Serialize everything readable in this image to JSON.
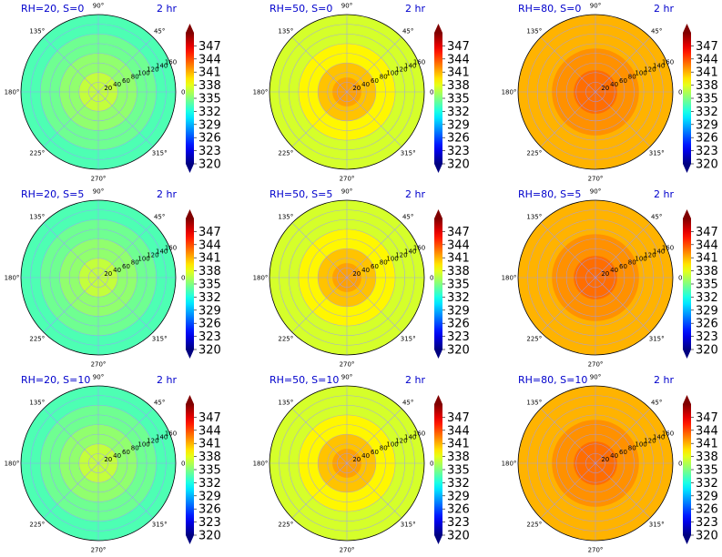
{
  "figure": {
    "colorbar_ticks": [
      "347",
      "344",
      "341",
      "338",
      "335",
      "332",
      "329",
      "326",
      "323",
      "320"
    ],
    "angle_labels": [
      "90°",
      "45°",
      "0°",
      "315°",
      "270°",
      "225°",
      "180°",
      "135°"
    ],
    "radial_labels": [
      "20",
      "40",
      "60",
      "80",
      "100",
      "120",
      "140",
      "160"
    ],
    "time_label": "2 hr",
    "colors": {
      "title": "#0000cc",
      "grid": "#9a9aff"
    }
  },
  "chart_data": [
    {
      "type": "heatmap",
      "projection": "polar",
      "title": "RH=20, S=0",
      "time": "2 hr",
      "rmax": 160,
      "clim": [
        320,
        350
      ],
      "rings": [
        {
          "r": 40,
          "value": 337
        },
        {
          "r": 80,
          "value": 335.5
        },
        {
          "r": 120,
          "value": 334.5
        },
        {
          "r": 160,
          "value": 333.5
        }
      ]
    },
    {
      "type": "heatmap",
      "projection": "polar",
      "title": "RH=50, S=0",
      "time": "2 hr",
      "rmax": 160,
      "clim": [
        320,
        350
      ],
      "rings": [
        {
          "r": 30,
          "value": 341.5
        },
        {
          "r": 60,
          "value": 340.5
        },
        {
          "r": 100,
          "value": 339
        },
        {
          "r": 160,
          "value": 337.5
        }
      ]
    },
    {
      "type": "heatmap",
      "projection": "polar",
      "title": "RH=80, S=0",
      "time": "2 hr",
      "rmax": 160,
      "clim": [
        320,
        350
      ],
      "rings": [
        {
          "r": 45,
          "value": 343
        },
        {
          "r": 90,
          "value": 342
        },
        {
          "r": 160,
          "value": 341
        }
      ]
    },
    {
      "type": "heatmap",
      "projection": "polar",
      "title": "RH=20, S=5",
      "time": "2 hr",
      "rmax": 160,
      "clim": [
        320,
        350
      ],
      "rings": [
        {
          "r": 40,
          "value": 337
        },
        {
          "r": 80,
          "value": 335.5
        },
        {
          "r": 120,
          "value": 334.5
        },
        {
          "r": 160,
          "value": 333.5
        }
      ]
    },
    {
      "type": "heatmap",
      "projection": "polar",
      "title": "RH=50, S=5",
      "time": "2 hr",
      "rmax": 160,
      "clim": [
        320,
        350
      ],
      "rings": [
        {
          "r": 30,
          "value": 341.5
        },
        {
          "r": 60,
          "value": 340.5
        },
        {
          "r": 100,
          "value": 339
        },
        {
          "r": 160,
          "value": 337.5
        }
      ]
    },
    {
      "type": "heatmap",
      "projection": "polar",
      "title": "RH=80, S=5",
      "time": "2 hr",
      "rmax": 160,
      "clim": [
        320,
        350
      ],
      "rings": [
        {
          "r": 45,
          "value": 343
        },
        {
          "r": 90,
          "value": 342
        },
        {
          "r": 160,
          "value": 341
        }
      ]
    },
    {
      "type": "heatmap",
      "projection": "polar",
      "title": "RH=20, S=10",
      "time": "2 hr",
      "rmax": 160,
      "clim": [
        320,
        350
      ],
      "rings": [
        {
          "r": 40,
          "value": 337
        },
        {
          "r": 80,
          "value": 335.5
        },
        {
          "r": 120,
          "value": 334.5
        },
        {
          "r": 160,
          "value": 333.5
        }
      ]
    },
    {
      "type": "heatmap",
      "projection": "polar",
      "title": "RH=50, S=10",
      "time": "2 hr",
      "rmax": 160,
      "clim": [
        320,
        350
      ],
      "rings": [
        {
          "r": 30,
          "value": 341.5
        },
        {
          "r": 60,
          "value": 340.5
        },
        {
          "r": 100,
          "value": 339
        },
        {
          "r": 160,
          "value": 337.5
        }
      ]
    },
    {
      "type": "heatmap",
      "projection": "polar",
      "title": "RH=80, S=10",
      "time": "2 hr",
      "rmax": 160,
      "clim": [
        320,
        350
      ],
      "rings": [
        {
          "r": 45,
          "value": 343
        },
        {
          "r": 90,
          "value": 342
        },
        {
          "r": 160,
          "value": 341
        }
      ]
    }
  ]
}
